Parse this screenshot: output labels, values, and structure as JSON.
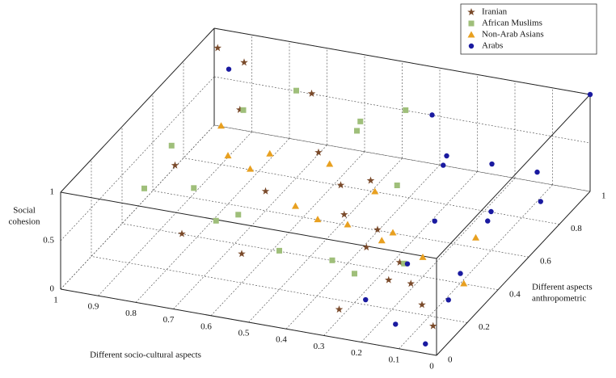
{
  "chart_data": {
    "type": "scatter3d",
    "xlabel": "Different socio-cultural aspects",
    "ylabel": [
      "Different aspects",
      "anthropometric"
    ],
    "zlabel": [
      "Social",
      "cohesion"
    ],
    "xlim": [
      0,
      1
    ],
    "xticks": [
      0,
      0.1,
      0.2,
      0.3,
      0.4,
      0.5,
      0.6,
      0.7,
      0.8,
      0.9,
      1
    ],
    "ylim": [
      0,
      1
    ],
    "yticks": [
      0,
      0.2,
      0.4,
      0.6,
      0.8,
      1
    ],
    "zlim": [
      0,
      1
    ],
    "zticks": [
      0,
      0.5,
      1
    ],
    "grid": true,
    "legend": "upper right",
    "series": [
      {
        "name": "Iranian",
        "color": "#7a4a2a",
        "marker": "star",
        "x": [
          0.95,
          0.9,
          0.85,
          0.7,
          0.6,
          0.5,
          0.45,
          0.4,
          0.35,
          0.3,
          0.25,
          0.2,
          0.15,
          0.1,
          0.05,
          0.8,
          0.6,
          0.3,
          0.9,
          0.7
        ],
        "y": [
          0.9,
          0.95,
          0.8,
          0.9,
          0.7,
          0.6,
          0.5,
          0.55,
          0.4,
          0.35,
          0.3,
          0.25,
          0.2,
          0.15,
          0.1,
          0.3,
          0.2,
          0.1,
          0.5,
          0.6
        ],
        "z": [
          1,
          0.8,
          0.6,
          0.7,
          0.5,
          0.4,
          0.3,
          0.6,
          0.2,
          0.5,
          0.1,
          0.4,
          0.3,
          0.2,
          0.1,
          0.2,
          0.3,
          0.1,
          0.5,
          0.2
        ]
      },
      {
        "name": "African Muslims",
        "color": "#9fbf7a",
        "marker": "square",
        "x": [
          0.95,
          0.9,
          0.85,
          0.8,
          0.75,
          0.7,
          0.65,
          0.55,
          0.5,
          0.45,
          0.4,
          0.35,
          0.3,
          0.25,
          0.6
        ],
        "y": [
          0.6,
          0.3,
          0.5,
          0.7,
          0.4,
          0.8,
          0.3,
          0.85,
          0.2,
          0.9,
          0.3,
          0.6,
          0.2,
          0.4,
          0.95
        ],
        "z": [
          0.5,
          0.6,
          0.3,
          0.8,
          0.2,
          0.9,
          0.5,
          0.6,
          0.4,
          0.7,
          0.2,
          0.5,
          0.3,
          0.1,
          0.3
        ]
      },
      {
        "name": "Non-Arab Asians",
        "color": "#e8a020",
        "marker": "triangle",
        "x": [
          0.9,
          0.8,
          0.75,
          0.7,
          0.6,
          0.55,
          0.5,
          0.45,
          0.4,
          0.35,
          0.3,
          0.2,
          0.1,
          0.05
        ],
        "y": [
          0.8,
          0.6,
          0.75,
          0.5,
          0.55,
          0.65,
          0.45,
          0.7,
          0.4,
          0.5,
          0.45,
          0.4,
          0.5,
          0.3
        ],
        "z": [
          0.4,
          0.5,
          0.3,
          0.6,
          0.2,
          0.5,
          0.3,
          0.2,
          0.4,
          0.1,
          0.3,
          0.2,
          0.3,
          0.2
        ]
      },
      {
        "name": "Arabs",
        "color": "#1a1aa0",
        "marker": "circle",
        "x": [
          0,
          0.05,
          0.1,
          0.15,
          0.2,
          0.25,
          0.1,
          0.05,
          0.15,
          0.2,
          0.3,
          0.35,
          0.05,
          0.1,
          0.4,
          0.9,
          0.25
        ],
        "y": [
          1,
          0.8,
          0.9,
          0.7,
          0.85,
          0.6,
          0.4,
          0.2,
          0.1,
          0.3,
          0.8,
          0.9,
          0.05,
          0.6,
          0.95,
          0.85,
          0.15
        ],
        "z": [
          1,
          0.2,
          0.3,
          0.1,
          0.4,
          0.2,
          0.1,
          0.2,
          0.05,
          0.3,
          0.5,
          0.2,
          0,
          0.4,
          0.6,
          0.9,
          0.15
        ]
      }
    ]
  }
}
